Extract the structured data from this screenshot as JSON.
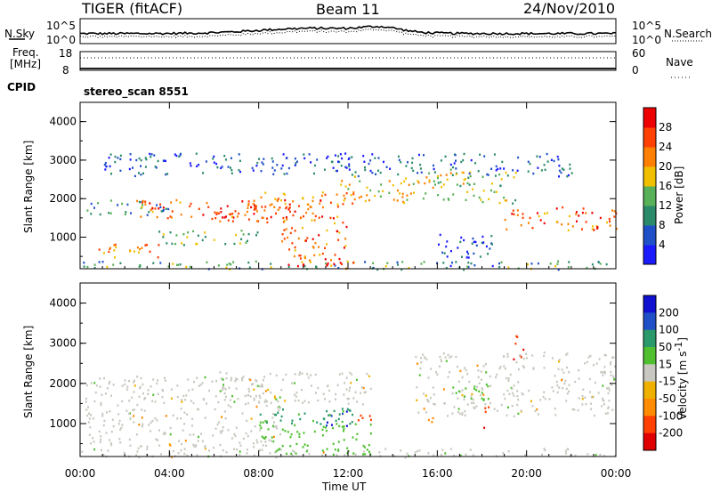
{
  "header": {
    "radar": "TIGER (fitACF)",
    "beam": "Beam 11",
    "date": "24/Nov/2010"
  },
  "nsky_panel": {
    "left_label": "N.Sky",
    "left_ticks": [
      "10^5",
      "10^0"
    ],
    "right_ticks": [
      "10^5",
      "10^0"
    ],
    "right_label": "N.Search"
  },
  "freq_panel": {
    "left_label_1": "Freq.",
    "left_label_2": "[MHz]",
    "left_ticks": [
      "18",
      "8"
    ],
    "right_ticks": [
      "60",
      "0"
    ],
    "right_label": "Nave"
  },
  "cpid": {
    "label": "CPID",
    "value": "stereo_scan 8551"
  },
  "colors": {
    "power_scale": [
      "#1a1aff",
      "#2050c8",
      "#2a8a6a",
      "#58b058",
      "#f0c000",
      "#ff8000",
      "#ff4000",
      "#ee0000"
    ],
    "velocity_scale": [
      "#e00000",
      "#ff4000",
      "#ff8c00",
      "#f0b000",
      "#c8c8c0",
      "#50c030",
      "#2a9a6a",
      "#2050c8",
      "#1010d0"
    ]
  },
  "chart_data": [
    {
      "type": "heatmap",
      "panel": "power",
      "ylabel": "Slant Range [km]",
      "y_ticks": [
        "1000",
        "2000",
        "3000",
        "4000"
      ],
      "ylim": [
        180,
        4500
      ],
      "colorbar_label": "Power [dB]",
      "colorbar_ticks": [
        "4",
        "8",
        "12",
        "16",
        "20",
        "24",
        "28"
      ],
      "colorbar_range": [
        0,
        32
      ],
      "x_ticks": [
        "00:00",
        "04:00",
        "08:00",
        "12:00",
        "16:00",
        "20:00",
        "00:00"
      ],
      "xlim_hours": [
        0,
        24
      ],
      "echo_bands": [
        {
          "t_start": 0.0,
          "t_end": 24.0,
          "range_low": 180,
          "range_high": 400,
          "power": 12
        },
        {
          "t_start": 0.2,
          "t_end": 4.0,
          "range_low": 1600,
          "range_high": 2000,
          "power": 10
        },
        {
          "t_start": 2.5,
          "t_end": 11.0,
          "range_low": 1500,
          "range_high": 2000,
          "power": 24
        },
        {
          "t_start": 6.0,
          "t_end": 9.5,
          "range_low": 1400,
          "range_high": 1900,
          "power": 26
        },
        {
          "t_start": 8.0,
          "t_end": 12.5,
          "range_low": 1800,
          "range_high": 2200,
          "power": 22
        },
        {
          "t_start": 11.5,
          "t_end": 15.5,
          "range_low": 1900,
          "range_high": 2600,
          "power": 18
        },
        {
          "t_start": 0.5,
          "t_end": 3.5,
          "range_low": 500,
          "range_high": 900,
          "power": 22
        },
        {
          "t_start": 3.5,
          "t_end": 8.0,
          "range_low": 800,
          "range_high": 1200,
          "power": 14
        },
        {
          "t_start": 9.0,
          "t_end": 12.0,
          "range_low": 400,
          "range_high": 1600,
          "power": 24
        },
        {
          "t_start": 9.0,
          "t_end": 12.5,
          "range_low": 200,
          "range_high": 400,
          "power": 28
        },
        {
          "t_start": 15.5,
          "t_end": 19.5,
          "range_low": 1900,
          "range_high": 2800,
          "power": 16
        },
        {
          "t_start": 19.0,
          "t_end": 24.0,
          "range_low": 1200,
          "range_high": 1800,
          "power": 24
        },
        {
          "t_start": 16.0,
          "t_end": 18.5,
          "range_low": 200,
          "range_high": 1100,
          "power": 6
        },
        {
          "t_start": 1.0,
          "t_end": 22.0,
          "range_low": 2600,
          "range_high": 3200,
          "power": 6
        }
      ]
    },
    {
      "type": "heatmap",
      "panel": "velocity",
      "ylabel": "Slant Range [km]",
      "y_ticks": [
        "1000",
        "2000",
        "3000",
        "4000"
      ],
      "ylim": [
        180,
        4500
      ],
      "xlabel": "Time UT",
      "colorbar_label": "Velocity [m s^-1]",
      "colorbar_label_main": "Velocity [m s",
      "colorbar_label_sup": "-1",
      "colorbar_label_end": "]",
      "colorbar_ticks": [
        "200",
        "100",
        "50",
        "15",
        "-15",
        "-50",
        "-100",
        "-200"
      ],
      "x_ticks": [
        "00:00",
        "04:00",
        "08:00",
        "12:00",
        "16:00",
        "20:00",
        "00:00"
      ],
      "xlim_hours": [
        0,
        24
      ],
      "echo_bands": [
        {
          "t_start": 0.0,
          "t_end": 24.0,
          "range_low": 180,
          "range_high": 400,
          "velocity": 0
        },
        {
          "t_start": 0.2,
          "t_end": 9.0,
          "range_low": 400,
          "range_high": 2200,
          "velocity": 0
        },
        {
          "t_start": 6.0,
          "t_end": 13.0,
          "range_low": 1500,
          "range_high": 2300,
          "velocity": 0
        },
        {
          "t_start": 8.0,
          "t_end": 13.0,
          "range_low": 250,
          "range_high": 1100,
          "velocity": 40
        },
        {
          "t_start": 8.0,
          "t_end": 12.5,
          "range_low": 1000,
          "range_high": 1400,
          "velocity": 60
        },
        {
          "t_start": 11.0,
          "t_end": 12.0,
          "range_low": 950,
          "range_high": 1350,
          "velocity": 200
        },
        {
          "t_start": 12.3,
          "t_end": 13.0,
          "range_low": 1100,
          "range_high": 1500,
          "velocity": -150
        },
        {
          "t_start": 15.3,
          "t_end": 15.8,
          "range_low": 1000,
          "range_high": 1400,
          "velocity": -80
        },
        {
          "t_start": 18.0,
          "t_end": 18.4,
          "range_low": 900,
          "range_high": 1500,
          "velocity": -180
        },
        {
          "t_start": 19.3,
          "t_end": 19.9,
          "range_low": 2600,
          "range_high": 3200,
          "velocity": -200
        },
        {
          "t_start": 15.0,
          "t_end": 24.0,
          "range_low": 1200,
          "range_high": 2800,
          "velocity": 0
        },
        {
          "t_start": 16.5,
          "t_end": 18.5,
          "range_low": 1600,
          "range_high": 2000,
          "velocity": 30
        }
      ]
    }
  ]
}
